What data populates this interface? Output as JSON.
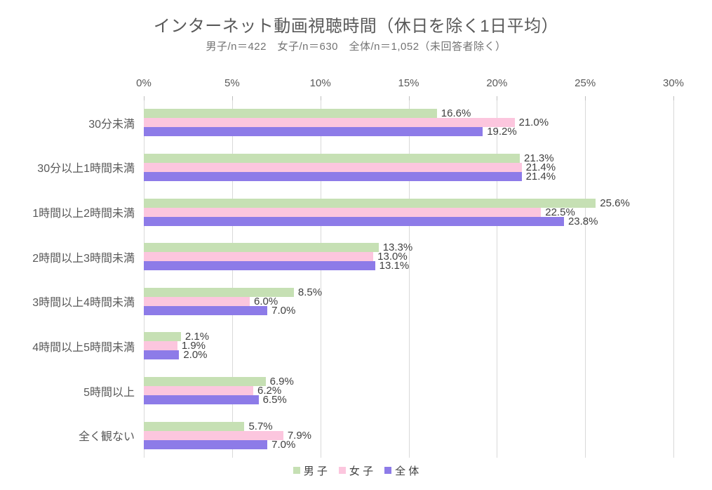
{
  "chart_data": {
    "type": "bar",
    "orientation": "horizontal",
    "title": "インターネット動画視聴時間（休日を除く1日平均）",
    "subtitle": "男子/n＝422　女子/n＝630　全体/n＝1,052（未回答者除く）",
    "categories": [
      "30分未満",
      "30分以上1時間未満",
      "1時間以上2時間未満",
      "2時間以上3時間未満",
      "3時間以上4時間未満",
      "4時間以上5時間未満",
      "5時間以上",
      "全く観ない"
    ],
    "series": [
      {
        "name": "男 子",
        "color": "#c6e0b4",
        "values": [
          16.6,
          21.3,
          25.6,
          13.3,
          8.5,
          2.1,
          6.9,
          5.7
        ]
      },
      {
        "name": "女 子",
        "color": "#fcc6de",
        "values": [
          21.0,
          21.4,
          22.5,
          13.0,
          6.0,
          1.9,
          6.2,
          7.9
        ]
      },
      {
        "name": "全 体",
        "color": "#8d7be8",
        "values": [
          19.2,
          21.4,
          23.8,
          13.1,
          7.0,
          2.0,
          6.5,
          7.0
        ]
      }
    ],
    "xlim": [
      0,
      30
    ],
    "x_ticks": [
      "0%",
      "5%",
      "10%",
      "15%",
      "20%",
      "25%",
      "30%"
    ],
    "value_suffix": "%",
    "value_decimals": 1,
    "axis_position": "top",
    "grid": true,
    "legend_position": "bottom"
  },
  "colors": {
    "series_male": "#c6e0b4",
    "series_female": "#fcc6de",
    "series_total": "#8d7be8",
    "grid": "#d9d9d9",
    "tick": "#bfbfbf",
    "text_gray": "#595959",
    "text_dark": "#3f3f3f",
    "background": "#ffffff"
  }
}
